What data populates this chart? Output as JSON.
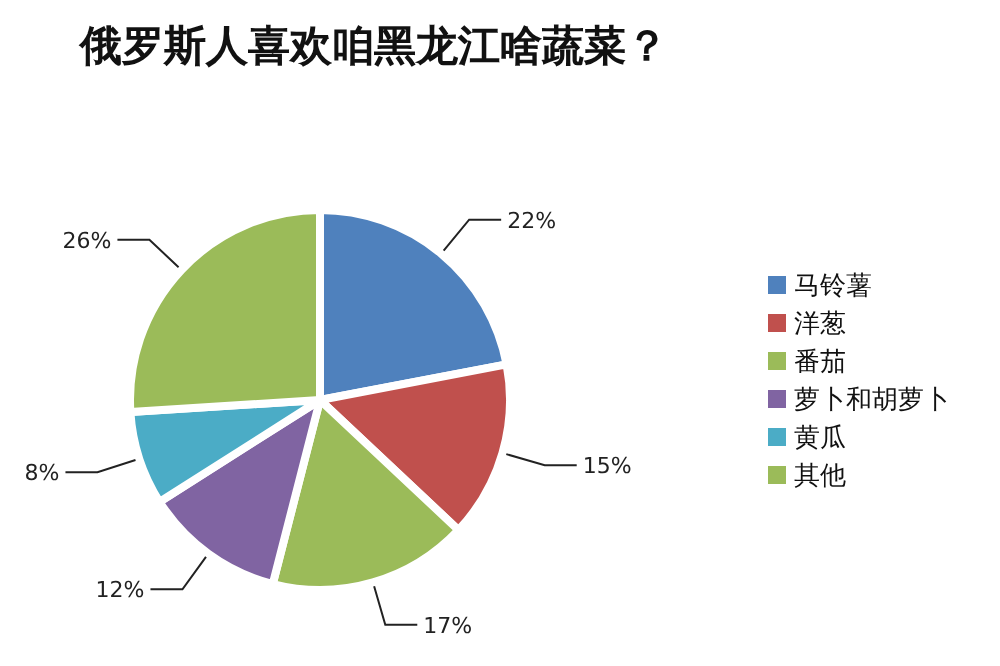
{
  "chart_data": {
    "type": "pie",
    "title": "俄罗斯人喜欢咱黑龙江啥蔬菜？",
    "categories": [
      "马铃薯",
      "洋葱",
      "番茄",
      "萝卜和胡萝卜",
      "黄瓜",
      "其他"
    ],
    "values": [
      22,
      15,
      17,
      12,
      8,
      26
    ],
    "colors": [
      "#4f81bd",
      "#c0504d",
      "#9bbb59",
      "#8064a2",
      "#4bacc6",
      "#9bbb59"
    ],
    "value_labels": [
      "22%",
      "15%",
      "17%",
      "12%",
      "8%",
      "26%"
    ],
    "legend": "right"
  }
}
